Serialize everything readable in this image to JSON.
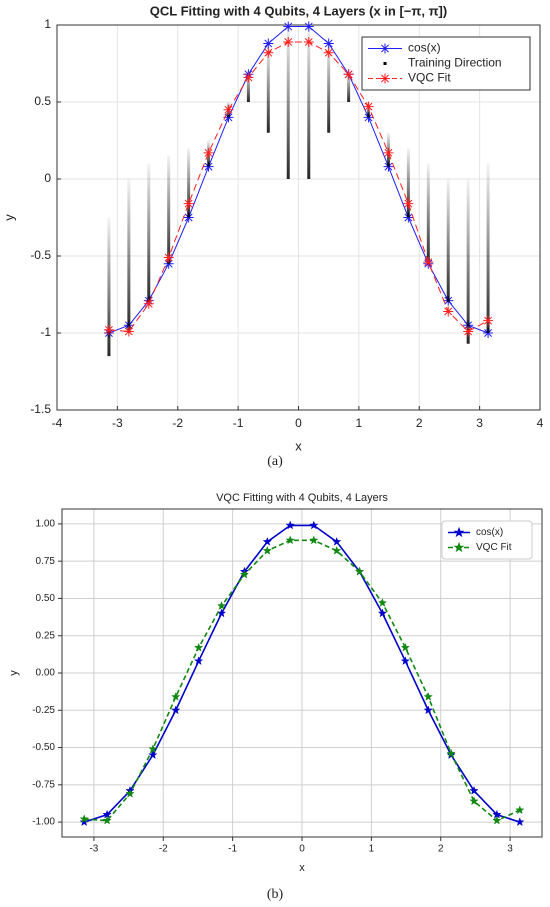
{
  "chart_data": [
    {
      "type": "line",
      "title": "QCL Fitting with 4 Qubits, 4 Layers (x in [−π, π])",
      "xlabel": "x",
      "ylabel": "y",
      "caption": "(a)",
      "xlim": [
        -4,
        4
      ],
      "xticks": [
        -4,
        -3,
        -2,
        -1,
        0,
        1,
        2,
        3,
        4
      ],
      "ylim": [
        -1.5,
        1
      ],
      "yticks": [
        -1.5,
        -1,
        -0.5,
        0,
        0.5,
        1
      ],
      "grid": true,
      "legend": "upper right",
      "x": [
        -3.14,
        -2.81,
        -2.48,
        -2.15,
        -1.82,
        -1.49,
        -1.16,
        -0.83,
        -0.5,
        -0.17,
        0.17,
        0.5,
        0.83,
        1.16,
        1.49,
        1.82,
        2.15,
        2.48,
        2.81,
        3.14
      ],
      "series": [
        {
          "name": "cos(x)",
          "color": "#1f1fff",
          "marker": "asterisk",
          "dash": "solid",
          "values": [
            -1,
            -0.95,
            -0.79,
            -0.55,
            -0.25,
            0.08,
            0.4,
            0.68,
            0.88,
            0.99,
            0.99,
            0.88,
            0.68,
            0.4,
            0.08,
            -0.25,
            -0.55,
            -0.79,
            -0.95,
            -1
          ]
        },
        {
          "name": "Training Direction",
          "color": "#000000",
          "marker": "streak",
          "low": [
            -1.15,
            -1.0,
            -0.8,
            -0.55,
            -0.25,
            0.08,
            0.4,
            0.5,
            0.3,
            0,
            0,
            0.3,
            0.5,
            0.4,
            0.08,
            -0.25,
            -0.55,
            -0.8,
            -1.07,
            -1.0
          ],
          "high": [
            -0.25,
            0,
            0.1,
            0.15,
            0.2,
            0.25,
            0.5,
            0.7,
            0.88,
            0.99,
            0.99,
            0.88,
            0.7,
            0.5,
            0.3,
            0.2,
            0.1,
            0,
            0,
            0.1
          ]
        },
        {
          "name": "VQC Fit",
          "color": "#ff1f1f",
          "marker": "asterisk",
          "dash": "dashed",
          "values": [
            -0.98,
            -0.99,
            -0.81,
            -0.51,
            -0.16,
            0.17,
            0.45,
            0.66,
            0.82,
            0.89,
            0.89,
            0.82,
            0.68,
            0.47,
            0.17,
            -0.16,
            -0.54,
            -0.86,
            -0.99,
            -0.92
          ]
        }
      ]
    },
    {
      "type": "line",
      "title": "VQC Fitting with 4 Qubits, 4 Layers",
      "xlabel": "x",
      "ylabel": "y",
      "caption": "(b)",
      "xlim": [
        -3.46,
        3.46
      ],
      "xticks": [
        -3,
        -2,
        -1,
        0,
        1,
        2,
        3
      ],
      "ylim": [
        -1.1,
        1.1
      ],
      "yticks": [
        {
          "value": -1,
          "label": "-1.00"
        },
        {
          "value": -0.75,
          "label": "-0.75"
        },
        {
          "value": -0.5,
          "label": "-0.50"
        },
        {
          "value": -0.25,
          "label": "-0.25"
        },
        {
          "value": 0,
          "label": "0.00"
        },
        {
          "value": 0.25,
          "label": "0.25"
        },
        {
          "value": 0.5,
          "label": "0.50"
        },
        {
          "value": 0.75,
          "label": "0.75"
        },
        {
          "value": 1,
          "label": "1.00"
        }
      ],
      "grid": true,
      "legend": "upper right",
      "x": [
        -3.14,
        -2.81,
        -2.48,
        -2.15,
        -1.82,
        -1.49,
        -1.16,
        -0.83,
        -0.5,
        -0.17,
        0.17,
        0.5,
        0.83,
        1.16,
        1.49,
        1.82,
        2.15,
        2.48,
        2.81,
        3.14
      ],
      "series": [
        {
          "name": "cos(x)",
          "color": "#0000cc",
          "marker": "star",
          "dash": "solid",
          "values": [
            -1,
            -0.95,
            -0.79,
            -0.55,
            -0.25,
            0.08,
            0.4,
            0.68,
            0.88,
            0.99,
            0.99,
            0.88,
            0.68,
            0.4,
            0.08,
            -0.25,
            -0.55,
            -0.79,
            -0.95,
            -1
          ]
        },
        {
          "name": "VQC Fit",
          "color": "#118811",
          "marker": "star",
          "dash": "dashed",
          "values": [
            -0.98,
            -0.99,
            -0.81,
            -0.51,
            -0.16,
            0.17,
            0.45,
            0.66,
            0.82,
            0.89,
            0.89,
            0.82,
            0.68,
            0.47,
            0.17,
            -0.16,
            -0.54,
            -0.86,
            -0.99,
            -0.92
          ]
        }
      ]
    }
  ]
}
